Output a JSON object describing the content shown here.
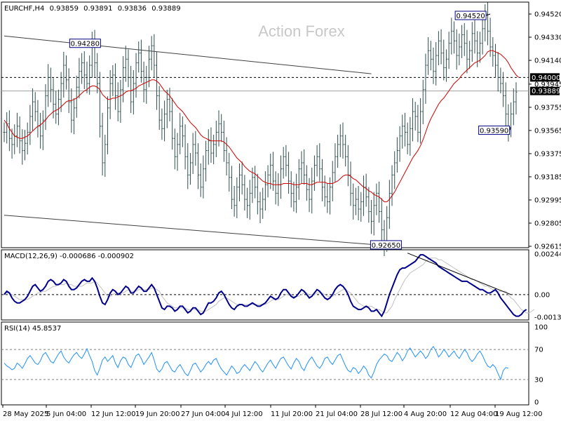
{
  "chart_data": [
    {
      "panel": "price",
      "type": "bar",
      "title": "EURCHF,H4",
      "ohlc": {
        "open": "0.93859",
        "high": "0.93891",
        "low": "0.93836",
        "close": "0.93889"
      },
      "watermark": "Action Forex",
      "y_ticks": [
        "0.94520",
        "0.94330",
        "0.94140",
        "0.93945",
        "0.93755",
        "0.93565",
        "0.93375",
        "0.93185",
        "0.92995",
        "0.92805",
        "0.92615"
      ],
      "ylim": [
        0.92615,
        0.9452
      ],
      "x_ticks": [
        "28 May 2025",
        "5 Jun 04:00",
        "12 Jun 12:00",
        "19 Jun 20:00",
        "27 Jun 04:00",
        "4 Jul 12:00",
        "11 Jul 20:00",
        "21 Jul 04:00",
        "28 Jul 12:00",
        "4 Aug 20:00",
        "12 Aug 04:00",
        "19 Aug 12:00"
      ],
      "current_price": "0.93889",
      "resistance_level": "0.94000",
      "annotations": [
        {
          "text": "0.94280",
          "value": 0.9428,
          "x_index": 34
        },
        {
          "text": "0.94520",
          "value": 0.9452,
          "x_index": 188
        },
        {
          "text": "0.92650",
          "value": 0.9265,
          "x_index": 152
        },
        {
          "text": "0.93590",
          "value": 0.9359,
          "x_index": 196
        }
      ],
      "price_series": [
        0.9355,
        0.9362,
        0.935,
        0.9345,
        0.9352,
        0.936,
        0.9348,
        0.934,
        0.9346,
        0.9355,
        0.9368,
        0.938,
        0.9372,
        0.936,
        0.9352,
        0.9365,
        0.9385,
        0.94,
        0.939,
        0.9378,
        0.937,
        0.9382,
        0.9395,
        0.941,
        0.9398,
        0.938,
        0.9365,
        0.9375,
        0.9392,
        0.9405,
        0.9412,
        0.9402,
        0.9395,
        0.941,
        0.9428,
        0.9412,
        0.9395,
        0.936,
        0.933,
        0.9345,
        0.9375,
        0.9395,
        0.9402,
        0.9385,
        0.9372,
        0.939,
        0.9408,
        0.9415,
        0.94,
        0.938,
        0.9395,
        0.9412,
        0.942,
        0.9405,
        0.939,
        0.94,
        0.9415,
        0.9426,
        0.941,
        0.9385,
        0.9365,
        0.9358,
        0.937,
        0.9382,
        0.9372,
        0.935,
        0.9335,
        0.9345,
        0.936,
        0.9352,
        0.9335,
        0.932,
        0.933,
        0.9345,
        0.9338,
        0.932,
        0.931,
        0.9325,
        0.934,
        0.9348,
        0.9338,
        0.9345,
        0.9355,
        0.9362,
        0.9355,
        0.934,
        0.933,
        0.9318,
        0.93,
        0.9295,
        0.931,
        0.932,
        0.9312,
        0.93,
        0.9295,
        0.9305,
        0.9318,
        0.931,
        0.9298,
        0.9292,
        0.93,
        0.9312,
        0.932,
        0.9328,
        0.9315,
        0.9305,
        0.9312,
        0.9325,
        0.9335,
        0.9328,
        0.9315,
        0.9305,
        0.9298,
        0.931,
        0.9325,
        0.933,
        0.932,
        0.9308,
        0.93,
        0.9315,
        0.9328,
        0.9335,
        0.9325,
        0.931,
        0.9302,
        0.9298,
        0.931,
        0.9322,
        0.9335,
        0.9345,
        0.9352,
        0.9345,
        0.9335,
        0.932,
        0.9305,
        0.9295,
        0.93,
        0.9292,
        0.9298,
        0.931,
        0.9302,
        0.929,
        0.9282,
        0.9295,
        0.9305,
        0.929,
        0.9275,
        0.9265,
        0.9285,
        0.9305,
        0.932,
        0.933,
        0.934,
        0.9352,
        0.936,
        0.9355,
        0.9345,
        0.9358,
        0.9372,
        0.9368,
        0.9355,
        0.9372,
        0.939,
        0.941,
        0.9422,
        0.9415,
        0.9405,
        0.9418,
        0.943,
        0.942,
        0.9408,
        0.9415,
        0.9428,
        0.9438,
        0.943,
        0.9418,
        0.9425,
        0.9435,
        0.9428,
        0.9415,
        0.9422,
        0.9436,
        0.943,
        0.942,
        0.9428,
        0.944,
        0.9452,
        0.9438,
        0.9425,
        0.9418,
        0.941,
        0.94,
        0.9395,
        0.9385,
        0.937,
        0.9359,
        0.937,
        0.938,
        0.9388
      ],
      "ma_series": [
        0.9365,
        0.9362,
        0.9358,
        0.9355,
        0.9352,
        0.9351,
        0.935,
        0.935,
        0.9351,
        0.9352,
        0.9354,
        0.9356,
        0.9358,
        0.936,
        0.9361,
        0.9363,
        0.9365,
        0.9368,
        0.937,
        0.9372,
        0.9373,
        0.9374,
        0.9376,
        0.9378,
        0.938,
        0.9381,
        0.9381,
        0.9382,
        0.9383,
        0.9385,
        0.9387,
        0.9389,
        0.939,
        0.9392,
        0.9393,
        0.9393,
        0.9392,
        0.939,
        0.9386,
        0.9384,
        0.9382,
        0.9382,
        0.9383,
        0.9383,
        0.9384,
        0.9385,
        0.9386,
        0.9388,
        0.9389,
        0.9389,
        0.939,
        0.9391,
        0.9393,
        0.9394,
        0.9395,
        0.9396,
        0.9397,
        0.9398,
        0.9398,
        0.9397,
        0.9395,
        0.9392,
        0.9389,
        0.9387,
        0.9385,
        0.9382,
        0.9379,
        0.9376,
        0.9374,
        0.9372,
        0.9369,
        0.9366,
        0.9363,
        0.9361,
        0.9359,
        0.9356,
        0.9353,
        0.9351,
        0.935,
        0.9349,
        0.9348,
        0.9348,
        0.9348,
        0.9348,
        0.9348,
        0.9347,
        0.9345,
        0.9343,
        0.934,
        0.9337,
        0.9334,
        0.9332,
        0.933,
        0.9327,
        0.9325,
        0.9323,
        0.9322,
        0.9321,
        0.9319,
        0.9317,
        0.9315,
        0.9314,
        0.9313,
        0.9313,
        0.9312,
        0.9312,
        0.9312,
        0.9312,
        0.9313,
        0.9313,
        0.9313,
        0.9313,
        0.9312,
        0.9312,
        0.9312,
        0.9313,
        0.9313,
        0.9313,
        0.9312,
        0.9312,
        0.9313,
        0.9314,
        0.9314,
        0.9314,
        0.9314,
        0.9313,
        0.9313,
        0.9313,
        0.9314,
        0.9315,
        0.9317,
        0.9319,
        0.932,
        0.932,
        0.9319,
        0.9317,
        0.9316,
        0.9314,
        0.9312,
        0.931,
        0.9309,
        0.9307,
        0.9306,
        0.9304,
        0.9303,
        0.9302,
        0.93,
        0.9298,
        0.9298,
        0.93,
        0.9303,
        0.9306,
        0.931,
        0.9314,
        0.9318,
        0.9322,
        0.9326,
        0.933,
        0.9334,
        0.9337,
        0.934,
        0.9344,
        0.9349,
        0.9355,
        0.9361,
        0.9366,
        0.937,
        0.9374,
        0.9378,
        0.9381,
        0.9383,
        0.9386,
        0.9389,
        0.9392,
        0.9395,
        0.9397,
        0.9399,
        0.9402,
        0.9404,
        0.9406,
        0.9408,
        0.941,
        0.9412,
        0.9413,
        0.9414,
        0.9416,
        0.9418,
        0.9421,
        0.9422,
        0.9422,
        0.9421,
        0.942,
        0.9419,
        0.9417,
        0.9415,
        0.9412,
        0.9408,
        0.9405,
        0.9402,
        0.94
      ],
      "trend_lines": [
        {
          "from": [
            0,
            0.9434
          ],
          "to": [
            142,
            0.9403
          ]
        },
        {
          "from": [
            0,
            0.9287
          ],
          "to": [
            148,
            0.9262
          ]
        }
      ]
    },
    {
      "panel": "macd",
      "type": "line",
      "title": "MACD(12,26,9) -0.000686 -0.000902",
      "y_ticks": [
        "0.002445",
        "0.00",
        "-0.00136"
      ],
      "ylim": [
        -0.00136,
        0.002445
      ],
      "macd_series": [
        0.0,
        0.0002,
        0.0001,
        -0.0002,
        -0.0004,
        -0.0005,
        -0.0005,
        -0.0004,
        -0.0003,
        -0.0001,
        0.0002,
        0.0005,
        0.0006,
        0.0004,
        0.0002,
        0.0003,
        0.0005,
        0.0008,
        0.0009,
        0.0008,
        0.0006,
        0.0006,
        0.0007,
        0.0009,
        0.0008,
        0.0005,
        0.0003,
        0.0003,
        0.0004,
        0.0006,
        0.0008,
        0.0009,
        0.0008,
        0.0008,
        0.001,
        0.0008,
        0.0004,
        -0.0001,
        -0.0005,
        -0.0006,
        -0.0003,
        0.0001,
        0.0003,
        0.0002,
        0.0,
        0.0001,
        0.0003,
        0.0005,
        0.0004,
        0.0001,
        0.0001,
        0.0003,
        0.0005,
        0.0004,
        0.0002,
        0.0002,
        0.0004,
        0.0006,
        0.0004,
        0.0,
        -0.0004,
        -0.0008,
        -0.0009,
        -0.0007,
        -0.0007,
        -0.0008,
        -0.001,
        -0.0009,
        -0.0007,
        -0.0007,
        -0.0009,
        -0.0011,
        -0.001,
        -0.0008,
        -0.0008,
        -0.001,
        -0.0012,
        -0.0011,
        -0.0008,
        -0.0005,
        -0.0005,
        -0.0004,
        -0.0002,
        0.0001,
        0.0002,
        0.0,
        -0.0003,
        -0.0006,
        -0.0008,
        -0.0009,
        -0.0007,
        -0.0006,
        -0.0006,
        -0.0007,
        -0.0007,
        -0.0006,
        -0.0005,
        -0.0006,
        -0.0007,
        -0.0007,
        -0.0006,
        -0.0005,
        -0.0003,
        -0.0001,
        -0.0002,
        -0.0003,
        -0.0002,
        0.0001,
        0.0003,
        0.0003,
        0.0001,
        -0.0001,
        -0.0002,
        -0.0001,
        0.0001,
        0.0003,
        0.0002,
        0.0,
        -0.0002,
        -0.0001,
        0.0001,
        0.0003,
        0.0002,
        0.0,
        -0.0002,
        -0.0003,
        -0.0002,
        0.0,
        0.0003,
        0.0005,
        0.0006,
        0.0005,
        0.0003,
        0.0,
        -0.0004,
        -0.0007,
        -0.0008,
        -0.0009,
        -0.0009,
        -0.0008,
        -0.0007,
        -0.0008,
        -0.001,
        -0.001,
        -0.0009,
        -0.0011,
        -0.0013,
        -0.001,
        -0.0005,
        0.0,
        0.0004,
        0.0008,
        0.0012,
        0.0015,
        0.0016,
        0.0016,
        0.0017,
        0.0018,
        0.0019,
        0.002,
        0.0022,
        0.0024,
        0.0024,
        0.0023,
        0.0022,
        0.0021,
        0.002,
        0.0019,
        0.0017,
        0.0016,
        0.0015,
        0.0014,
        0.0013,
        0.0012,
        0.0011,
        0.001,
        0.0009,
        0.0008,
        0.0008,
        0.0008,
        0.0007,
        0.0006,
        0.0005,
        0.0004,
        0.0003,
        0.0003,
        0.0002,
        0.0001,
        0.0001,
        0.0002,
        0.0003,
        0.0001,
        -0.0002,
        -0.0004,
        -0.0006,
        -0.0008,
        -0.001,
        -0.0012,
        -0.0013,
        -0.0013,
        -0.0012,
        -0.001,
        -0.0009
      ],
      "signal_series": [
        0.0001,
        0.0001,
        0.0001,
        0.0,
        -0.0001,
        -0.0002,
        -0.0003,
        -0.0003,
        -0.0003,
        -0.0003,
        -0.0002,
        -0.0001,
        0.0,
        0.0001,
        0.0001,
        0.0002,
        0.0002,
        0.0003,
        0.0004,
        0.0005,
        0.0005,
        0.0006,
        0.0006,
        0.0006,
        0.0007,
        0.0006,
        0.0006,
        0.0005,
        0.0005,
        0.0005,
        0.0005,
        0.0006,
        0.0007,
        0.0007,
        0.0007,
        0.0008,
        0.0007,
        0.0005,
        0.0003,
        0.0001,
        -0.0001,
        -0.0001,
        0.0,
        0.0001,
        0.0001,
        0.0001,
        0.0001,
        0.0002,
        0.0003,
        0.0002,
        0.0002,
        0.0002,
        0.0003,
        0.0003,
        0.0003,
        0.0003,
        0.0003,
        0.0004,
        0.0004,
        0.0003,
        0.0002,
        -0.0001,
        -0.0003,
        -0.0005,
        -0.0006,
        -0.0007,
        -0.0008,
        -0.0008,
        -0.0008,
        -0.0008,
        -0.0008,
        -0.0009,
        -0.0009,
        -0.0009,
        -0.0009,
        -0.0009,
        -0.001,
        -0.001,
        -0.001,
        -0.0009,
        -0.0008,
        -0.0007,
        -0.0006,
        -0.0004,
        -0.0003,
        -0.0002,
        -0.0002,
        -0.0003,
        -0.0004,
        -0.0005,
        -0.0006,
        -0.0006,
        -0.0006,
        -0.0006,
        -0.0006,
        -0.0006,
        -0.0006,
        -0.0006,
        -0.0006,
        -0.0006,
        -0.0006,
        -0.0006,
        -0.0005,
        -0.0004,
        -0.0003,
        -0.0003,
        -0.0003,
        -0.0002,
        -0.0001,
        0.0,
        0.0,
        0.0,
        -0.0001,
        -0.0001,
        -0.0001,
        0.0,
        0.0001,
        0.0001,
        0.0,
        0.0,
        0.0,
        0.0001,
        0.0001,
        0.0001,
        0.0,
        -0.0001,
        -0.0001,
        -0.0001,
        0.0,
        0.0001,
        0.0002,
        0.0003,
        0.0003,
        0.0002,
        0.0001,
        -0.0001,
        -0.0003,
        -0.0005,
        -0.0006,
        -0.0007,
        -0.0007,
        -0.0007,
        -0.0007,
        -0.0008,
        -0.0009,
        -0.0009,
        -0.001,
        -0.0011,
        -0.0011,
        -0.0009,
        -0.0007,
        -0.0003,
        0.0,
        0.0003,
        0.0006,
        0.0009,
        0.0011,
        0.0013,
        0.0014,
        0.0015,
        0.0016,
        0.0017,
        0.0018,
        0.002,
        0.0021,
        0.0022,
        0.0022,
        0.0022,
        0.0021,
        0.0021,
        0.002,
        0.0019,
        0.0018,
        0.0017,
        0.0016,
        0.0015,
        0.0014,
        0.0013,
        0.0012,
        0.0011,
        0.001,
        0.0009,
        0.0009,
        0.0008,
        0.0007,
        0.0006,
        0.0005,
        0.0005,
        0.0004,
        0.0003,
        0.0002,
        0.0002,
        0.0002,
        0.0002,
        0.0002,
        0.0,
        -0.0002,
        -0.0003,
        -0.0005,
        -0.0007,
        -0.0009,
        -0.001,
        -0.0011,
        -0.0011,
        -0.001,
        -0.0009
      ],
      "trend_line": {
        "from": [
          156,
          0.0025
        ],
        "to": [
          196,
          0.0
        ]
      }
    },
    {
      "panel": "rsi",
      "type": "line",
      "title": "RSI(14) 45.8537",
      "y_ticks": [
        "100",
        "70",
        "30",
        "0"
      ],
      "ylim": [
        0,
        100
      ],
      "levels": [
        70,
        30
      ],
      "rsi_series": [
        52,
        48,
        46,
        43,
        45,
        52,
        49,
        45,
        51,
        58,
        62,
        57,
        52,
        50,
        55,
        63,
        66,
        60,
        54,
        52,
        58,
        64,
        68,
        60,
        55,
        52,
        58,
        63,
        66,
        61,
        58,
        64,
        71,
        62,
        54,
        42,
        36,
        45,
        56,
        60,
        54,
        58,
        62,
        52,
        46,
        55,
        60,
        58,
        50,
        46,
        54,
        62,
        64,
        58,
        50,
        55,
        60,
        66,
        56,
        44,
        40,
        44,
        52,
        54,
        48,
        42,
        40,
        46,
        50,
        44,
        38,
        35,
        42,
        50,
        52,
        46,
        40,
        44,
        50,
        54,
        50,
        56,
        58,
        50,
        44,
        40,
        36,
        42,
        48,
        44,
        38,
        40,
        46,
        50,
        46,
        42,
        48,
        54,
        50,
        44,
        40,
        46,
        52,
        56,
        50,
        45,
        52,
        58,
        60,
        54,
        48,
        44,
        52,
        58,
        54,
        46,
        42,
        50,
        56,
        60,
        54,
        48,
        45,
        50,
        58,
        60,
        54,
        50,
        56,
        62,
        64,
        56,
        48,
        42,
        40,
        46,
        44,
        38,
        42,
        48,
        44,
        36,
        32,
        40,
        50,
        56,
        60,
        64,
        62,
        56,
        54,
        60,
        66,
        62,
        55,
        60,
        68,
        72,
        66,
        60,
        64,
        68,
        64,
        58,
        62,
        70,
        74,
        68,
        60,
        64,
        70,
        66,
        60,
        64,
        68,
        62,
        58,
        64,
        70,
        66,
        58,
        54,
        58,
        64,
        68,
        62,
        54,
        48,
        46,
        50,
        46,
        38,
        30,
        42,
        46,
        45
      ],
      "xlim": [
        0,
        199
      ]
    }
  ],
  "colors": {
    "price_bars": "#2f4f4f",
    "moving_average": "#d00000",
    "macd_line": "#00008b",
    "signal_line": "#c0c0c0",
    "rsi_line": "#1e90ff",
    "trend_lines": "#404040",
    "grid_levels": "#000000",
    "current_price_tag": "#000000"
  }
}
